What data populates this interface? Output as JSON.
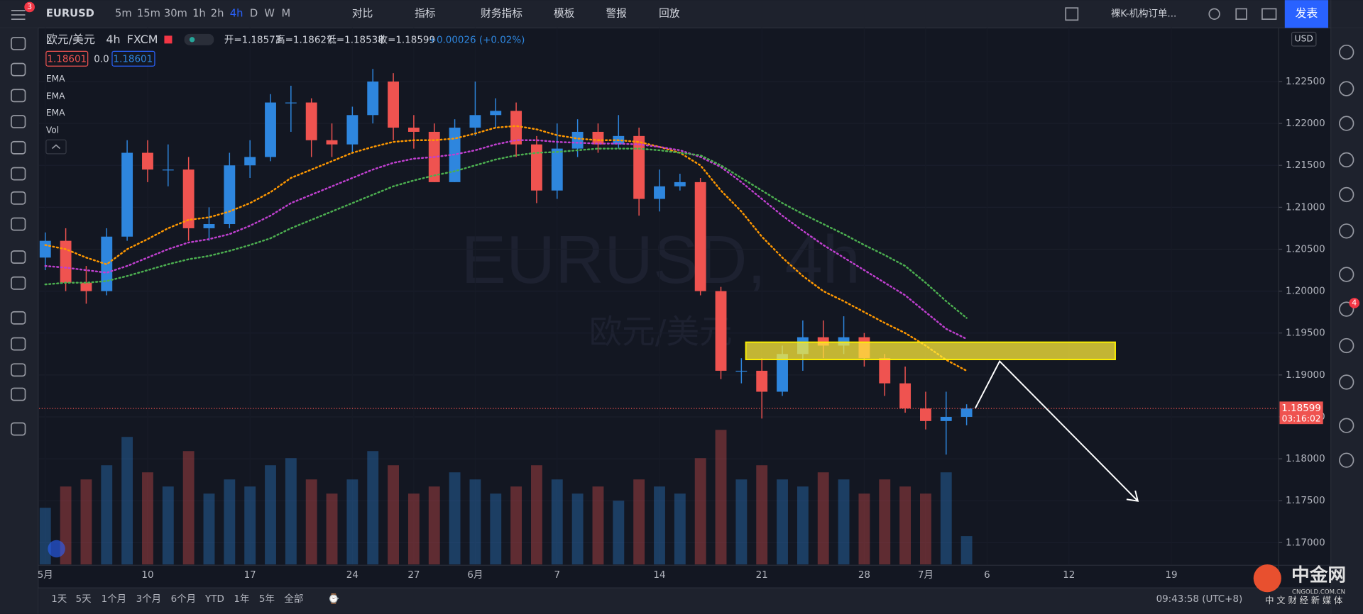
{
  "ui": {
    "symbol": "EURUSD",
    "intervals": [
      "5m",
      "15m",
      "30m",
      "1h",
      "2h",
      "4h",
      "D",
      "W",
      "M"
    ],
    "tools": [
      "对比",
      "指标",
      "财务指标",
      "模板",
      "警报",
      "回放"
    ],
    "layout_name": "裸K-机构订单...",
    "publish": "发表",
    "notification_badge": "3",
    "chat_badge": "4",
    "legend": {
      "name": "欧元/美元",
      "interval": "4h",
      "exchange": "FXCM",
      "open": "开=1.18573",
      "high": "高=1.18627",
      "low": "低=1.18538",
      "close": "收=1.18599",
      "change": "+0.00026 (+0.02%)"
    },
    "bid": "1.18601",
    "spread": "0.0",
    "ask": "1.18601",
    "indicators": [
      "EMA",
      "EMA",
      "EMA",
      "Vol"
    ],
    "currency": "USD",
    "price_tag": "1.18599",
    "countdown": "03:16:02",
    "watermark": "EURUSD, 4h",
    "watermark_sub": "欧元/美元",
    "ranges": [
      "1天",
      "5天",
      "1个月",
      "3个月",
      "6个月",
      "YTD",
      "1年",
      "5年",
      "全部"
    ],
    "clock": "09:43:58 (UTC+8)",
    "brand": "中金网",
    "brand_sub": "CNGOLD.COM.CN",
    "brand_tag": "中 文 财 经 新 媒 体"
  },
  "chart_data": {
    "type": "candlestick",
    "up_color": "#2e86de",
    "down_color": "#ef5350",
    "x": [
      0,
      1,
      2,
      3,
      4,
      5,
      6,
      7,
      8,
      9,
      10,
      11,
      12,
      13,
      14,
      15,
      16,
      17,
      18,
      19,
      20,
      21,
      22,
      23,
      24,
      25,
      26,
      27,
      28,
      29,
      30,
      31,
      32,
      33,
      34,
      35,
      36,
      37,
      38,
      39,
      40,
      41,
      42,
      43,
      44,
      45
    ],
    "open": [
      1.204,
      1.206,
      1.201,
      1.2,
      1.2065,
      1.2165,
      1.2145,
      1.2145,
      1.2075,
      1.208,
      1.215,
      1.216,
      1.2225,
      1.2225,
      1.218,
      1.2175,
      1.221,
      1.225,
      1.2195,
      1.219,
      1.213,
      1.2195,
      1.221,
      1.2215,
      1.2175,
      1.212,
      1.217,
      1.219,
      1.2175,
      1.2185,
      1.211,
      1.2125,
      1.213,
      1.2,
      1.1905,
      1.1905,
      1.188,
      1.1925,
      1.1945,
      1.1935,
      1.1945,
      1.192,
      1.189,
      1.186,
      1.1845,
      1.185
    ],
    "high": [
      1.207,
      1.2075,
      1.203,
      1.2075,
      1.218,
      1.218,
      1.2175,
      1.216,
      1.21,
      1.2165,
      1.218,
      1.2235,
      1.2245,
      1.223,
      1.22,
      1.222,
      1.2265,
      1.226,
      1.221,
      1.22,
      1.2205,
      1.225,
      1.223,
      1.2225,
      1.2185,
      1.22,
      1.2205,
      1.22,
      1.221,
      1.2195,
      1.2145,
      1.214,
      1.2135,
      1.2005,
      1.192,
      1.192,
      1.1935,
      1.1965,
      1.1965,
      1.197,
      1.195,
      1.1925,
      1.191,
      1.188,
      1.188,
      1.1865
    ],
    "low": [
      1.2025,
      1.2,
      1.1985,
      1.1995,
      1.206,
      1.213,
      1.2125,
      1.206,
      1.206,
      1.2075,
      1.2135,
      1.2155,
      1.219,
      1.216,
      1.216,
      1.2165,
      1.22,
      1.218,
      1.217,
      1.213,
      1.213,
      1.2185,
      1.2195,
      1.216,
      1.2105,
      1.211,
      1.216,
      1.2165,
      1.217,
      1.209,
      1.2095,
      1.212,
      1.1995,
      1.1895,
      1.189,
      1.1848,
      1.1875,
      1.1905,
      1.192,
      1.1925,
      1.191,
      1.1875,
      1.1855,
      1.1835,
      1.1805,
      1.184
    ],
    "close": [
      1.206,
      1.201,
      1.2,
      1.2065,
      1.2165,
      1.2145,
      1.2145,
      1.2075,
      1.208,
      1.215,
      1.216,
      1.2225,
      1.2225,
      1.218,
      1.2175,
      1.221,
      1.225,
      1.2195,
      1.219,
      1.213,
      1.2195,
      1.221,
      1.2215,
      1.2175,
      1.212,
      1.217,
      1.219,
      1.2175,
      1.2185,
      1.211,
      1.2125,
      1.213,
      1.2,
      1.1905,
      1.1905,
      1.188,
      1.1925,
      1.1945,
      1.1935,
      1.1945,
      1.192,
      1.189,
      1.186,
      1.1845,
      1.185,
      1.186
    ],
    "volume": [
      40,
      55,
      60,
      70,
      90,
      65,
      55,
      80,
      50,
      60,
      55,
      70,
      75,
      60,
      50,
      60,
      80,
      70,
      50,
      55,
      65,
      60,
      50,
      55,
      70,
      60,
      50,
      55,
      45,
      60,
      55,
      50,
      75,
      95,
      60,
      70,
      60,
      55,
      65,
      60,
      50,
      60,
      55,
      50,
      65,
      20
    ],
    "series": [
      {
        "color": "#ff9800",
        "values": [
          1.2055,
          1.205,
          1.204,
          1.2032,
          1.205,
          1.2062,
          1.2075,
          1.2085,
          1.2088,
          1.2095,
          1.2105,
          1.2118,
          1.2135,
          1.2145,
          1.2155,
          1.2165,
          1.2172,
          1.2178,
          1.218,
          1.218,
          1.2182,
          1.2188,
          1.2195,
          1.2197,
          1.2193,
          1.2186,
          1.2182,
          1.218,
          1.218,
          1.2178,
          1.2172,
          1.2165,
          1.215,
          1.212,
          1.2095,
          1.2065,
          1.204,
          1.2018,
          1.2,
          1.1988,
          1.1975,
          1.1962,
          1.195,
          1.1935,
          1.1918,
          1.1905
        ]
      },
      {
        "color": "#c040d0",
        "values": [
          1.203,
          1.2028,
          1.2025,
          1.2022,
          1.203,
          1.204,
          1.205,
          1.2058,
          1.2062,
          1.2068,
          1.2078,
          1.209,
          1.2105,
          1.2115,
          1.2125,
          1.2135,
          1.2145,
          1.2153,
          1.2158,
          1.216,
          1.2163,
          1.2168,
          1.2175,
          1.218,
          1.218,
          1.2178,
          1.2177,
          1.2176,
          1.2176,
          1.2175,
          1.2172,
          1.2168,
          1.216,
          1.2148,
          1.213,
          1.211,
          1.209,
          1.2072,
          1.2055,
          1.204,
          1.2025,
          1.201,
          1.1995,
          1.1975,
          1.1955,
          1.1943
        ]
      },
      {
        "color": "#4caf50",
        "values": [
          1.2008,
          1.201,
          1.201,
          1.2012,
          1.2018,
          1.2025,
          1.2032,
          1.2038,
          1.2042,
          1.2048,
          1.2055,
          1.2063,
          1.2075,
          1.2085,
          1.2095,
          1.2105,
          1.2115,
          1.2125,
          1.2132,
          1.2138,
          1.2143,
          1.215,
          1.2157,
          1.2162,
          1.2165,
          1.2166,
          1.2168,
          1.217,
          1.217,
          1.217,
          1.2168,
          1.2165,
          1.2162,
          1.215,
          1.2135,
          1.212,
          1.2105,
          1.2092,
          1.208,
          1.2068,
          1.2055,
          1.2043,
          1.203,
          1.201,
          1.1988,
          1.1968
        ]
      }
    ],
    "xlim": [
      -0.3,
      60.2
    ],
    "xticks": [
      {
        "value": 0,
        "label": "5月"
      },
      {
        "value": 5,
        "label": "10"
      },
      {
        "value": 10,
        "label": "17"
      },
      {
        "value": 15,
        "label": "24"
      },
      {
        "value": 18,
        "label": "27"
      },
      {
        "value": 21,
        "label": "6月"
      },
      {
        "value": 25,
        "label": "7"
      },
      {
        "value": 30,
        "label": "14"
      },
      {
        "value": 35,
        "label": "21"
      },
      {
        "value": 40,
        "label": "28"
      },
      {
        "value": 43,
        "label": "7月"
      },
      {
        "value": 46,
        "label": "6"
      },
      {
        "value": 50,
        "label": "12"
      },
      {
        "value": 55,
        "label": "19"
      }
    ],
    "ylim": [
      1.1674,
      1.2314
    ],
    "yticks": [
      {
        "value": 1.17,
        "label": "1.17000"
      },
      {
        "value": 1.175,
        "label": "1.17500"
      },
      {
        "value": 1.18,
        "label": "1.18000"
      },
      {
        "value": 1.185,
        "label": "1.18500"
      },
      {
        "value": 1.19,
        "label": "1.19000"
      },
      {
        "value": 1.195,
        "label": "1.19500"
      },
      {
        "value": 1.2,
        "label": "1.20000"
      },
      {
        "value": 1.205,
        "label": "1.20500"
      },
      {
        "value": 1.21,
        "label": "1.21000"
      },
      {
        "value": 1.215,
        "label": "1.21500"
      },
      {
        "value": 1.22,
        "label": "1.22000"
      },
      {
        "value": 1.225,
        "label": "1.22500"
      }
    ]
  }
}
